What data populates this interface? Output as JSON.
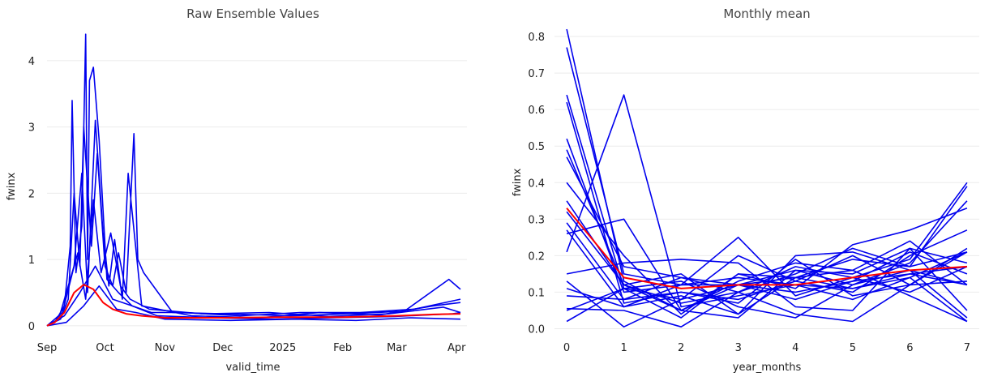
{
  "chart_data": [
    {
      "type": "line",
      "title": "Raw Ensemble Values",
      "xlabel": "valid_time",
      "ylabel": "fwinx",
      "x_range": [
        "2024-09-01",
        "2025-04-03"
      ],
      "ylim": [
        -0.1,
        4.5
      ],
      "y_ticks": [
        0,
        1,
        2,
        3,
        4
      ],
      "x_tick_labels": [
        {
          "date": "2024-09-01",
          "label": "Sep"
        },
        {
          "date": "2024-10-01",
          "label": "Oct"
        },
        {
          "date": "2024-11-01",
          "label": "Nov"
        },
        {
          "date": "2024-12-01",
          "label": "Dec"
        },
        {
          "date": "2025-01-01",
          "label": "2025"
        },
        {
          "date": "2025-02-01",
          "label": "Feb"
        },
        {
          "date": "2025-03-01",
          "label": "Mar"
        },
        {
          "date": "2025-04-01",
          "label": "Apr"
        }
      ],
      "grid": "horizontal",
      "ensemble_color": "#0000ee",
      "mean_color": "#ff0000",
      "series": [
        {
          "role": "member",
          "x": [
            "2024-09-01",
            "2024-09-05",
            "2024-09-10",
            "2024-09-13",
            "2024-09-14",
            "2024-09-16",
            "2024-09-19",
            "2024-09-21",
            "2024-09-22",
            "2024-09-23",
            "2024-09-25",
            "2024-09-28",
            "2024-10-02",
            "2024-10-08",
            "2024-10-15",
            "2024-10-25",
            "2024-11-10",
            "2024-12-10",
            "2025-01-10",
            "2025-02-10",
            "2025-03-10",
            "2025-04-03"
          ],
          "y": [
            0.0,
            0.05,
            0.3,
            1.2,
            3.4,
            0.8,
            1.5,
            4.4,
            1.0,
            3.7,
            3.9,
            2.8,
            0.7,
            0.5,
            0.3,
            0.2,
            0.2,
            0.15,
            0.2,
            0.2,
            0.25,
            0.4
          ]
        },
        {
          "role": "member",
          "x": [
            "2024-09-01",
            "2024-09-08",
            "2024-09-12",
            "2024-09-15",
            "2024-09-18",
            "2024-09-20",
            "2024-09-24",
            "2024-09-27",
            "2024-10-01",
            "2024-10-05",
            "2024-10-08",
            "2024-10-12",
            "2024-10-16",
            "2024-10-18",
            "2024-10-21",
            "2024-11-05",
            "2024-12-01",
            "2025-01-05",
            "2025-02-05",
            "2025-03-05",
            "2025-03-28",
            "2025-04-03"
          ],
          "y": [
            0.0,
            0.1,
            0.4,
            2.0,
            0.9,
            3.0,
            1.2,
            2.6,
            0.9,
            0.6,
            1.1,
            0.5,
            2.9,
            1.0,
            0.8,
            0.2,
            0.18,
            0.15,
            0.18,
            0.22,
            0.7,
            0.55
          ]
        },
        {
          "role": "member",
          "x": [
            "2024-09-01",
            "2024-09-09",
            "2024-09-15",
            "2024-09-19",
            "2024-09-22",
            "2024-09-26",
            "2024-09-30",
            "2024-10-03",
            "2024-10-06",
            "2024-10-10",
            "2024-10-13",
            "2024-10-20",
            "2024-11-15",
            "2024-12-20",
            "2025-01-20",
            "2025-02-20",
            "2025-03-20",
            "2025-04-03"
          ],
          "y": [
            0.0,
            0.2,
            0.9,
            2.3,
            0.5,
            3.1,
            1.4,
            0.6,
            1.3,
            0.4,
            2.3,
            0.3,
            0.15,
            0.12,
            0.2,
            0.16,
            0.3,
            0.35
          ]
        },
        {
          "role": "member",
          "x": [
            "2024-09-01",
            "2024-09-07",
            "2024-09-12",
            "2024-09-17",
            "2024-09-21",
            "2024-09-25",
            "2024-09-29",
            "2024-10-04",
            "2024-10-09",
            "2024-10-14",
            "2024-10-24",
            "2024-11-20",
            "2024-12-25",
            "2025-01-25",
            "2025-02-25",
            "2025-03-25",
            "2025-04-03"
          ],
          "y": [
            0.0,
            0.1,
            0.6,
            1.1,
            0.4,
            1.9,
            0.8,
            1.4,
            0.6,
            0.4,
            0.25,
            0.18,
            0.2,
            0.14,
            0.18,
            0.28,
            0.2
          ]
        },
        {
          "role": "member",
          "x": [
            "2024-09-01",
            "2024-09-10",
            "2024-09-18",
            "2024-09-26",
            "2024-10-05",
            "2024-10-15",
            "2024-10-28",
            "2024-11-25",
            "2024-12-28",
            "2025-01-28",
            "2025-02-28",
            "2025-03-30",
            "2025-04-03"
          ],
          "y": [
            0.0,
            0.15,
            0.5,
            0.9,
            0.4,
            0.3,
            0.15,
            0.12,
            0.1,
            0.12,
            0.14,
            0.18,
            0.2
          ]
        },
        {
          "role": "member",
          "x": [
            "2024-09-01",
            "2024-09-11",
            "2024-09-20",
            "2024-09-28",
            "2024-10-07",
            "2024-10-17",
            "2024-11-01",
            "2024-12-05",
            "2025-01-08",
            "2025-02-08",
            "2025-03-08",
            "2025-04-03"
          ],
          "y": [
            0.0,
            0.05,
            0.3,
            0.6,
            0.25,
            0.2,
            0.1,
            0.08,
            0.1,
            0.08,
            0.12,
            0.1
          ]
        },
        {
          "role": "mean",
          "x": [
            "2024-09-01",
            "2024-09-05",
            "2024-09-10",
            "2024-09-15",
            "2024-09-20",
            "2024-09-25",
            "2024-09-30",
            "2024-10-05",
            "2024-10-12",
            "2024-10-20",
            "2024-11-01",
            "2024-12-01",
            "2025-01-01",
            "2025-02-01",
            "2025-03-01",
            "2025-03-20",
            "2025-04-03"
          ],
          "y": [
            0.0,
            0.05,
            0.2,
            0.5,
            0.62,
            0.55,
            0.35,
            0.25,
            0.18,
            0.15,
            0.12,
            0.12,
            0.13,
            0.13,
            0.15,
            0.17,
            0.18
          ]
        }
      ]
    },
    {
      "type": "line",
      "title": "Monthly mean",
      "xlabel": "year_months",
      "ylabel": "fwinx",
      "x": [
        0,
        1,
        2,
        3,
        4,
        5,
        6,
        7
      ],
      "xlim": [
        -0.1,
        7.1
      ],
      "ylim": [
        -0.01,
        0.82
      ],
      "y_ticks": [
        0.0,
        0.1,
        0.2,
        0.3,
        0.4,
        0.5,
        0.6,
        0.7,
        0.8
      ],
      "grid": "horizontal",
      "ensemble_color": "#0000ee",
      "mean_color": "#ff0000",
      "series": [
        {
          "role": "member",
          "values": [
            0.82,
            0.13,
            0.05,
            0.12,
            0.1,
            0.13,
            0.15,
            0.17
          ]
        },
        {
          "role": "member",
          "values": [
            0.77,
            0.15,
            0.12,
            0.14,
            0.12,
            0.11,
            0.14,
            0.02
          ]
        },
        {
          "role": "member",
          "values": [
            0.64,
            0.11,
            0.08,
            0.12,
            0.14,
            0.19,
            0.17,
            0.21
          ]
        },
        {
          "role": "member",
          "values": [
            0.62,
            0.07,
            0.1,
            0.08,
            0.13,
            0.1,
            0.2,
            0.27
          ]
        },
        {
          "role": "member",
          "values": [
            0.52,
            0.1,
            0.12,
            0.25,
            0.09,
            0.14,
            0.19,
            0.4
          ]
        },
        {
          "role": "member",
          "values": [
            0.49,
            0.12,
            0.07,
            0.1,
            0.15,
            0.22,
            0.17,
            0.39
          ]
        },
        {
          "role": "member",
          "values": [
            0.47,
            0.17,
            0.14,
            0.12,
            0.16,
            0.12,
            0.18,
            0.35
          ]
        },
        {
          "role": "member",
          "values": [
            0.4,
            0.2,
            0.04,
            0.15,
            0.11,
            0.23,
            0.27,
            0.33
          ]
        },
        {
          "role": "member",
          "values": [
            0.35,
            0.12,
            0.05,
            0.13,
            0.18,
            0.16,
            0.24,
            0.12
          ]
        },
        {
          "role": "member",
          "values": [
            0.32,
            0.12,
            0.15,
            0.04,
            0.2,
            0.21,
            0.16,
            0.03
          ]
        },
        {
          "role": "member",
          "values": [
            0.29,
            0.08,
            0.1,
            0.07,
            0.19,
            0.09,
            0.12,
            0.22
          ]
        },
        {
          "role": "member",
          "values": [
            0.27,
            0.06,
            0.12,
            0.12,
            0.08,
            0.13,
            0.21,
            0.15
          ]
        },
        {
          "role": "member",
          "values": [
            0.26,
            0.3,
            0.05,
            0.03,
            0.16,
            0.15,
            0.22,
            0.18
          ]
        },
        {
          "role": "member",
          "values": [
            0.21,
            0.64,
            0.06,
            0.09,
            0.12,
            0.08,
            0.14,
            0.21
          ]
        },
        {
          "role": "member",
          "values": [
            0.15,
            0.18,
            0.19,
            0.18,
            0.06,
            0.05,
            0.22,
            0.05
          ]
        },
        {
          "role": "member",
          "values": [
            0.13,
            0.005,
            0.08,
            0.2,
            0.13,
            0.2,
            0.12,
            0.13
          ]
        },
        {
          "role": "member",
          "values": [
            0.11,
            0.06,
            0.09,
            0.04,
            0.14,
            0.16,
            0.09,
            0.02
          ]
        },
        {
          "role": "member",
          "values": [
            0.09,
            0.08,
            0.14,
            0.1,
            0.17,
            0.14,
            0.1,
            0.17
          ]
        },
        {
          "role": "member",
          "values": [
            0.055,
            0.05,
            0.005,
            0.1,
            0.04,
            0.02,
            0.12,
            0.21
          ]
        },
        {
          "role": "member",
          "values": [
            0.05,
            0.11,
            0.13,
            0.06,
            0.03,
            0.12,
            0.16,
            0.12
          ]
        },
        {
          "role": "member",
          "values": [
            0.02,
            0.11,
            0.03,
            0.15,
            0.14,
            0.11,
            0.15,
            0.12
          ]
        },
        {
          "role": "mean",
          "values": [
            0.33,
            0.14,
            0.11,
            0.12,
            0.12,
            0.14,
            0.16,
            0.17
          ]
        }
      ]
    }
  ]
}
